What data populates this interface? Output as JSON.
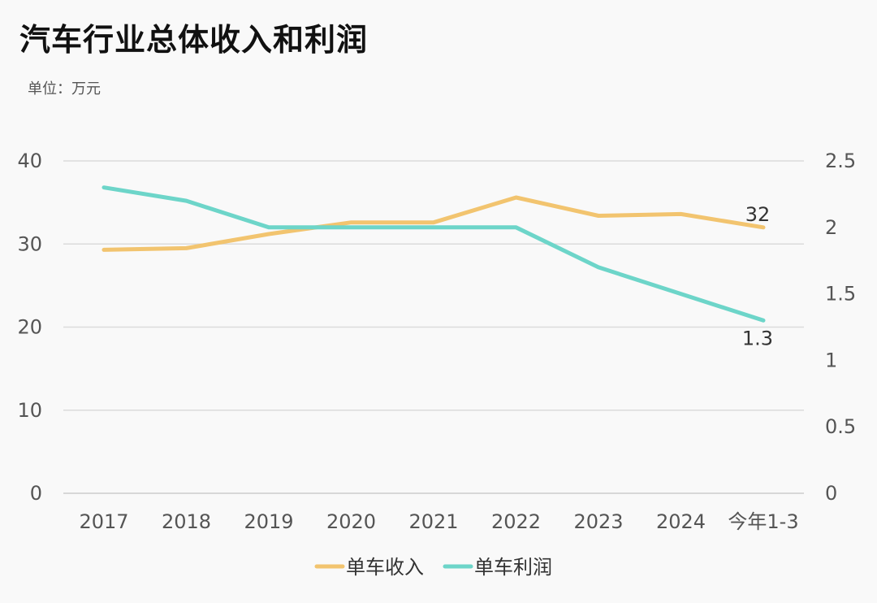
{
  "chart_data": {
    "type": "line",
    "title": "汽车行业总体收入和利润",
    "unit_label": "单位：万元",
    "categories": [
      "2017",
      "2018",
      "2019",
      "2020",
      "2021",
      "2022",
      "2023",
      "2024",
      "今年1-3"
    ],
    "y_left": {
      "ylim": [
        0,
        40
      ],
      "ticks": [
        0,
        10,
        20,
        30,
        40
      ]
    },
    "y_right": {
      "ylim": [
        0,
        2.5
      ],
      "ticks": [
        "0",
        "0.5",
        "1",
        "1.5",
        "2",
        "2.5"
      ]
    },
    "grid": true,
    "legend_position": "bottom-center",
    "series": [
      {
        "name": "单车收入",
        "axis": "left",
        "color": "#f2c46f",
        "values": [
          29.3,
          29.5,
          31.2,
          32.6,
          32.6,
          35.6,
          33.4,
          33.6,
          32.0
        ],
        "end_label": "32"
      },
      {
        "name": "单车利润",
        "axis": "right",
        "color": "#6dd5c9",
        "values": [
          2.3,
          2.2,
          2.0,
          2.0,
          2.0,
          2.0,
          1.7,
          1.5,
          1.3
        ],
        "end_label": "1.3"
      }
    ]
  }
}
